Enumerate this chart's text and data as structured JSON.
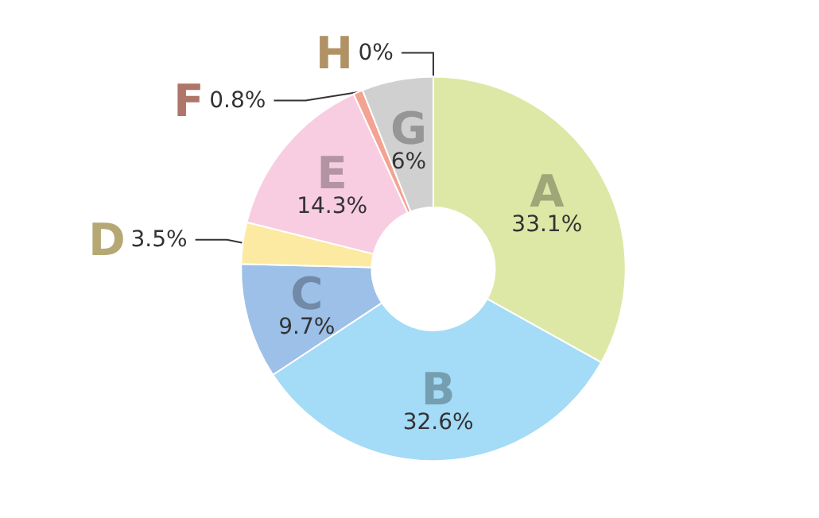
{
  "chart_data": {
    "type": "donut",
    "categories": [
      "A",
      "B",
      "C",
      "D",
      "E",
      "F",
      "G",
      "H"
    ],
    "values": [
      33.1,
      32.6,
      9.7,
      3.5,
      14.3,
      0.8,
      6,
      0
    ],
    "value_labels": [
      "33.1%",
      "32.6%",
      "9.7%",
      "3.5%",
      "14.3%",
      "0.8%",
      "6%",
      "0%"
    ],
    "colors": [
      "#dde8a6",
      "#a4dbf6",
      "#9cc0e8",
      "#fdeaa2",
      "#f8cde1",
      "#f2a391",
      "#d0d0d0",
      "#f6cb8c"
    ],
    "legend": false
  }
}
